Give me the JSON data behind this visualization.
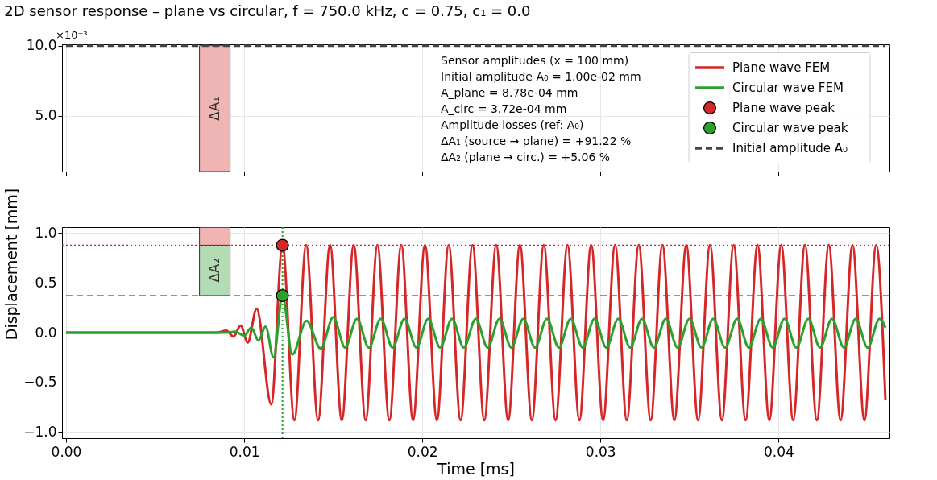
{
  "chart_data": [
    {
      "type": "line",
      "title": "2D sensor response – plane vs circular, f = 750.0 kHz, c = 0.75, c₁ = 0.0",
      "xlim": [
        0,
        0.046
      ],
      "xticks": [
        {
          "value": 0,
          "label": null
        },
        {
          "value": 0.01,
          "label": null
        },
        {
          "value": 0.02,
          "label": null
        },
        {
          "value": 0.03,
          "label": null
        },
        {
          "value": 0.04,
          "label": null
        }
      ],
      "ylim": [
        1.0,
        10.1
      ],
      "yticks": [
        {
          "value": 5,
          "label": "5.0"
        },
        {
          "value": 10,
          "label": "10.0"
        }
      ],
      "tick_labels": "y",
      "grid": true,
      "legend": "right",
      "annotations": [
        "×10⁻³"
      ],
      "marker": "none",
      "series": [
        {
          "name": "Initial amplitude A₀",
          "color": "#444444",
          "line_style": "dashed",
          "x": [
            0,
            0.046
          ],
          "values": [
            10,
            10
          ]
        },
        {
          "type": "bar",
          "name": "ΔA₁",
          "color": "#efb4b4",
          "x": [
            0.00835
          ],
          "base": [
            1.0
          ],
          "values": [
            9.0
          ]
        }
      ]
    },
    {
      "type": "line",
      "xlabel": "Time [ms]",
      "ylabel": "Displacement [mm]",
      "xlim": [
        0,
        0.046
      ],
      "xticks": [
        {
          "value": 0,
          "label": "0.00"
        },
        {
          "value": 0.01,
          "label": "0.01"
        },
        {
          "value": 0.02,
          "label": "0.02"
        },
        {
          "value": 0.03,
          "label": "0.03"
        },
        {
          "value": 0.04,
          "label": "0.04"
        }
      ],
      "ylim": [
        -1.06,
        1.06
      ],
      "yticks": [
        {
          "value": -1,
          "label": "−1.0"
        },
        {
          "value": -0.5,
          "label": "−0.5"
        },
        {
          "value": 0,
          "label": "0.0"
        },
        {
          "value": 0.5,
          "label": "0.5"
        },
        {
          "value": 1,
          "label": "1.0"
        }
      ],
      "grid": true,
      "marker": "none",
      "legend": "top right",
      "annotations": [
        "Sensor amplitudes (x = 100 mm)",
        "Initial amplitude A₀ = 1.00e-02 mm",
        "A_plane = 8.78e-04 mm",
        "A_circ  = 3.72e-04 mm",
        "Amplitude losses (ref: A₀)",
        "ΔA₁ (source → plane) = +91.22 %",
        "ΔA₂ (plane → circ.) = +5.06 %"
      ],
      "ref_lines": [
        {
          "axis": "x",
          "value": 0.01215,
          "color": "#d62728",
          "line_style": "dotted"
        },
        {
          "axis": "x",
          "value": 0.01215,
          "color": "#2ca02c",
          "line_style": "dotted"
        },
        {
          "axis": "y",
          "value": 0.878,
          "color": "#d62728",
          "line_style": "dotted"
        },
        {
          "axis": "y",
          "value": 0.372,
          "color": "#2ca02c",
          "line_style": "dashed"
        }
      ],
      "series": [
        {
          "type": "bar",
          "color": "#efb4b4",
          "x": [
            0.00835
          ],
          "base": [
            0.878
          ],
          "values": [
            0.18
          ]
        },
        {
          "type": "bar",
          "name": "ΔA₂",
          "color": "#b4dcb4",
          "x": [
            0.00835
          ],
          "base": [
            0.372
          ],
          "values": [
            0.506
          ]
        },
        {
          "name": "Plane wave FEM",
          "color": "#d62728",
          "x": [
            0,
            0.0085,
            0.009,
            0.0094,
            0.0098,
            0.0102,
            0.0107,
            0.01152,
            0.01215,
            0.01282,
            0.01348,
            0.01415,
            0.01482,
            0.01548,
            0.01615,
            0.01682,
            0.01748,
            0.01815,
            0.01882,
            0.01948,
            0.02015,
            0.02082,
            0.02148,
            0.02215,
            0.02282,
            0.02348,
            0.02415,
            0.02482,
            0.02548,
            0.02615,
            0.02682,
            0.02748,
            0.02815,
            0.02882,
            0.02948,
            0.03015,
            0.03082,
            0.03148,
            0.03215,
            0.03282,
            0.03348,
            0.03415,
            0.03482,
            0.03548,
            0.03615,
            0.03682,
            0.03748,
            0.03815,
            0.03882,
            0.03948,
            0.04015,
            0.04082,
            0.04148,
            0.04215,
            0.04282,
            0.04348,
            0.04415,
            0.04482,
            0.04548,
            0.046
          ],
          "values": [
            0,
            0,
            0.02,
            -0.04,
            0.07,
            -0.1,
            0.24,
            -0.72,
            0.878,
            -0.88,
            0.88,
            -0.88,
            0.88,
            -0.88,
            0.88,
            -0.88,
            0.88,
            -0.88,
            0.88,
            -0.88,
            0.88,
            -0.88,
            0.88,
            -0.88,
            0.88,
            -0.88,
            0.88,
            -0.88,
            0.88,
            -0.88,
            0.88,
            -0.88,
            0.88,
            -0.88,
            0.88,
            -0.88,
            0.88,
            -0.88,
            0.88,
            -0.88,
            0.88,
            -0.88,
            0.88,
            -0.88,
            0.88,
            -0.88,
            0.88,
            -0.88,
            0.88,
            -0.88,
            0.88,
            -0.88,
            0.88,
            -0.88,
            0.88,
            -0.88,
            0.88,
            -0.88,
            0.88,
            -0.68
          ]
        },
        {
          "name": "Circular wave FEM",
          "color": "#2ca02c",
          "x": [
            0,
            0.009,
            0.0095,
            0.01,
            0.0104,
            0.0108,
            0.0112,
            0.01165,
            0.01215,
            0.0127,
            0.0135,
            0.0143,
            0.015,
            0.01567,
            0.01633,
            0.017,
            0.01767,
            0.01833,
            0.019,
            0.01967,
            0.02033,
            0.021,
            0.02167,
            0.02233,
            0.023,
            0.02367,
            0.02433,
            0.025,
            0.02567,
            0.02633,
            0.027,
            0.02767,
            0.02833,
            0.029,
            0.02967,
            0.03033,
            0.031,
            0.03167,
            0.03233,
            0.033,
            0.03367,
            0.03433,
            0.035,
            0.03567,
            0.03633,
            0.037,
            0.03767,
            0.03833,
            0.039,
            0.03967,
            0.04033,
            0.041,
            0.04167,
            0.04233,
            0.043,
            0.04367,
            0.04433,
            0.045,
            0.04567,
            0.046
          ],
          "values": [
            0,
            0,
            0.01,
            -0.03,
            0.05,
            -0.08,
            0.06,
            -0.25,
            0.372,
            -0.22,
            0.12,
            -0.16,
            0.155,
            -0.15,
            0.14,
            -0.15,
            0.14,
            -0.15,
            0.14,
            -0.15,
            0.14,
            -0.15,
            0.14,
            -0.15,
            0.14,
            -0.15,
            0.14,
            -0.15,
            0.14,
            -0.15,
            0.14,
            -0.15,
            0.14,
            -0.15,
            0.14,
            -0.15,
            0.14,
            -0.15,
            0.14,
            -0.15,
            0.14,
            -0.15,
            0.14,
            -0.15,
            0.14,
            -0.15,
            0.14,
            -0.15,
            0.14,
            -0.15,
            0.14,
            -0.15,
            0.14,
            -0.15,
            0.14,
            -0.15,
            0.14,
            -0.15,
            0.14,
            0.05
          ]
        },
        {
          "type": "scatter",
          "marker": "circle",
          "name": "Plane wave peak",
          "color": "#d62728",
          "x": [
            0.01215
          ],
          "values": [
            0.878
          ]
        },
        {
          "type": "scatter",
          "marker": "circle",
          "name": "Circular wave peak",
          "color": "#2ca02c",
          "x": [
            0.01215
          ],
          "values": [
            0.372
          ]
        }
      ]
    }
  ]
}
